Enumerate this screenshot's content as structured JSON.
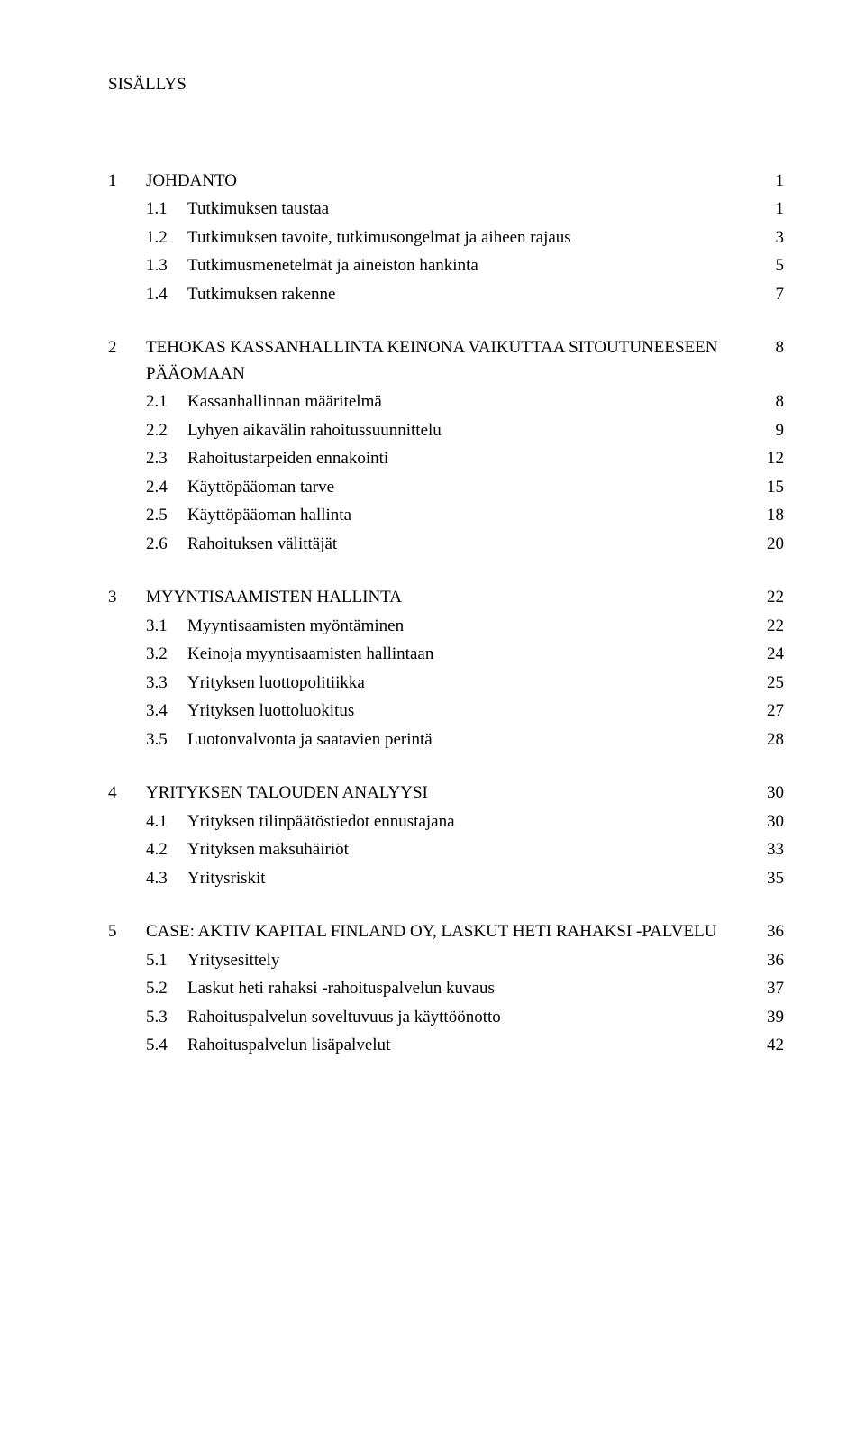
{
  "title": "SISÄLLYS",
  "toc": [
    {
      "type": "gap"
    },
    {
      "level": 1,
      "num": "1",
      "label": "JOHDANTO",
      "page": "1"
    },
    {
      "level": 2,
      "num": "1.1",
      "label": "Tutkimuksen taustaa",
      "page": "1"
    },
    {
      "level": 2,
      "num": "1.2",
      "label": "Tutkimuksen tavoite, tutkimusongelmat ja aiheen rajaus",
      "page": "3"
    },
    {
      "level": 2,
      "num": "1.3",
      "label": "Tutkimusmenetelmät ja aineiston hankinta",
      "page": "5"
    },
    {
      "level": 2,
      "num": "1.4",
      "label": "Tutkimuksen rakenne",
      "page": "7"
    },
    {
      "type": "gap"
    },
    {
      "level": 1,
      "num": "2",
      "label": "TEHOKAS KASSANHALLINTA KEINONA VAIKUTTAA SITOUTUNEESEEN PÄÄOMAAN",
      "page": "8"
    },
    {
      "level": 2,
      "num": "2.1",
      "label": "Kassanhallinnan määritelmä",
      "page": "8"
    },
    {
      "level": 2,
      "num": "2.2",
      "label": "Lyhyen aikavälin rahoitussuunnittelu",
      "page": "9"
    },
    {
      "level": 2,
      "num": "2.3",
      "label": "Rahoitustarpeiden ennakointi",
      "page": "12"
    },
    {
      "level": 2,
      "num": "2.4",
      "label": "Käyttöpääoman tarve",
      "page": "15"
    },
    {
      "level": 2,
      "num": "2.5",
      "label": "Käyttöpääoman hallinta",
      "page": "18"
    },
    {
      "level": 2,
      "num": "2.6",
      "label": "Rahoituksen välittäjät",
      "page": "20"
    },
    {
      "type": "gap"
    },
    {
      "level": 1,
      "num": "3",
      "label": "MYYNTISAAMISTEN HALLINTA",
      "page": "22"
    },
    {
      "level": 2,
      "num": "3.1",
      "label": "Myyntisaamisten myöntäminen",
      "page": "22"
    },
    {
      "level": 2,
      "num": "3.2",
      "label": "Keinoja myyntisaamisten hallintaan",
      "page": "24"
    },
    {
      "level": 2,
      "num": "3.3",
      "label": "Yrityksen luottopolitiikka",
      "page": "25"
    },
    {
      "level": 2,
      "num": "3.4",
      "label": "Yrityksen luottoluokitus",
      "page": "27"
    },
    {
      "level": 2,
      "num": "3.5",
      "label": "Luotonvalvonta ja saatavien perintä",
      "page": "28"
    },
    {
      "type": "gap"
    },
    {
      "level": 1,
      "num": "4",
      "label": "YRITYKSEN TALOUDEN ANALYYSI",
      "page": "30"
    },
    {
      "level": 2,
      "num": "4.1",
      "label": "Yrityksen tilinpäätöstiedot ennustajana",
      "page": "30"
    },
    {
      "level": 2,
      "num": "4.2",
      "label": "Yrityksen maksuhäiriöt",
      "page": "33"
    },
    {
      "level": 2,
      "num": "4.3",
      "label": "Yritysriskit",
      "page": "35"
    },
    {
      "type": "gap"
    },
    {
      "level": 1,
      "num": "5",
      "label": "CASE: AKTIV KAPITAL FINLAND OY, LASKUT HETI RAHAKSI -PALVELU",
      "page": "36"
    },
    {
      "level": 2,
      "num": "5.1",
      "label": "Yritysesittely",
      "page": "36"
    },
    {
      "level": 2,
      "num": "5.2",
      "label": "Laskut heti rahaksi -rahoituspalvelun kuvaus",
      "page": "37"
    },
    {
      "level": 2,
      "num": "5.3",
      "label": "Rahoituspalvelun soveltuvuus ja käyttöönotto",
      "page": "39"
    },
    {
      "level": 2,
      "num": "5.4",
      "label": "Rahoituspalvelun lisäpalvelut",
      "page": "42"
    }
  ]
}
